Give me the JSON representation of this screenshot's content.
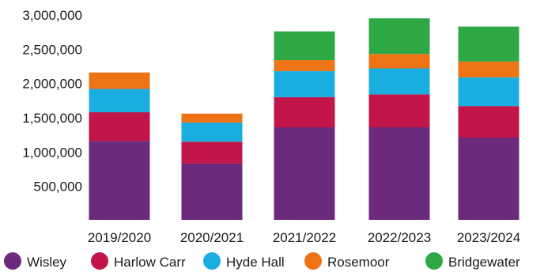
{
  "chart_data": {
    "type": "bar",
    "stacked": true,
    "title": "",
    "xlabel": "",
    "ylabel": "",
    "ylim": [
      0,
      3000000
    ],
    "y_ticks": [
      "3,000,000",
      "2,500,000",
      "2,000,000",
      "1,500,000",
      "1,000,000",
      "500,000"
    ],
    "y_tick_values": [
      3000000,
      2500000,
      2000000,
      1500000,
      1000000,
      500000
    ],
    "grid": false,
    "legend_position": "bottom",
    "categories": [
      "2019/2020",
      "2020/2021",
      "2021/2022",
      "2022/2023",
      "2023/2024"
    ],
    "series": [
      {
        "name": "Wisley",
        "color": "#6b2a7c",
        "values": [
          1150000,
          820000,
          1350000,
          1350000,
          1200000
        ]
      },
      {
        "name": "Harlow Carr",
        "color": "#c2154a",
        "values": [
          420000,
          320000,
          440000,
          480000,
          460000
        ]
      },
      {
        "name": "Hyde Hall",
        "color": "#1aaee0",
        "values": [
          340000,
          280000,
          380000,
          380000,
          420000
        ]
      },
      {
        "name": "Rosemoor",
        "color": "#ee7314",
        "values": [
          240000,
          130000,
          160000,
          210000,
          230000
        ]
      },
      {
        "name": "Bridgewater",
        "color": "#2ea745",
        "values": [
          0,
          0,
          420000,
          520000,
          510000
        ]
      }
    ]
  }
}
